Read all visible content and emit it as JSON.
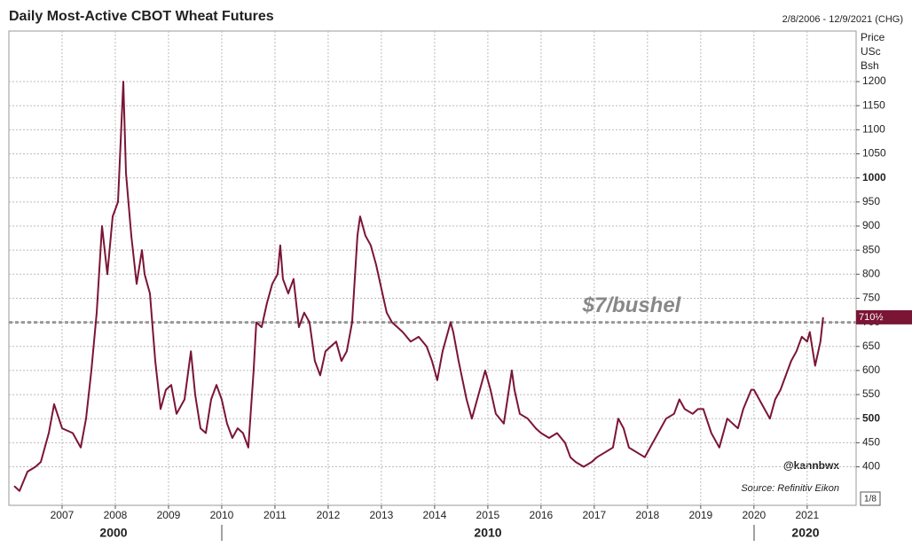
{
  "chart_data": {
    "type": "line",
    "title": "Daily Most-Active CBOT Wheat Futures",
    "date_range": "2/8/2006 - 12/9/2021 (CHG)",
    "y_axis_label": [
      "Price",
      "USc",
      "Bsh"
    ],
    "color": "#7b1535",
    "x": [
      2006.1,
      2006.2,
      2006.35,
      2006.5,
      2006.6,
      2006.75,
      2006.85,
      2007.0,
      2007.2,
      2007.35,
      2007.45,
      2007.55,
      2007.65,
      2007.75,
      2007.85,
      2007.95,
      2008.05,
      2008.15,
      2008.2,
      2008.3,
      2008.4,
      2008.5,
      2008.55,
      2008.65,
      2008.75,
      2008.85,
      2008.95,
      2009.05,
      2009.15,
      2009.3,
      2009.42,
      2009.5,
      2009.6,
      2009.7,
      2009.8,
      2009.9,
      2010.0,
      2010.1,
      2010.2,
      2010.3,
      2010.4,
      2010.5,
      2010.6,
      2010.65,
      2010.75,
      2010.85,
      2010.95,
      2011.05,
      2011.1,
      2011.15,
      2011.25,
      2011.35,
      2011.45,
      2011.55,
      2011.65,
      2011.75,
      2011.85,
      2011.95,
      2012.05,
      2012.15,
      2012.25,
      2012.35,
      2012.45,
      2012.55,
      2012.6,
      2012.7,
      2012.8,
      2012.9,
      2013.0,
      2013.1,
      2013.2,
      2013.3,
      2013.4,
      2013.55,
      2013.7,
      2013.85,
      2013.95,
      2014.05,
      2014.15,
      2014.3,
      2014.35,
      2014.45,
      2014.6,
      2014.7,
      2014.85,
      2014.95,
      2015.05,
      2015.15,
      2015.3,
      2015.45,
      2015.5,
      2015.6,
      2015.75,
      2015.9,
      2016.0,
      2016.15,
      2016.3,
      2016.45,
      2016.55,
      2016.65,
      2016.8,
      2016.95,
      2017.05,
      2017.2,
      2017.35,
      2017.45,
      2017.55,
      2017.65,
      2017.8,
      2017.95,
      2018.05,
      2018.2,
      2018.35,
      2018.5,
      2018.6,
      2018.7,
      2018.85,
      2018.95,
      2019.05,
      2019.2,
      2019.35,
      2019.5,
      2019.6,
      2019.7,
      2019.8,
      2019.95,
      2020.0,
      2020.1,
      2020.2,
      2020.3,
      2020.4,
      2020.5,
      2020.6,
      2020.7,
      2020.8,
      2020.9,
      2021.0,
      2021.05,
      2021.15,
      2021.25,
      2021.3
    ],
    "values": [
      360,
      350,
      390,
      400,
      410,
      470,
      530,
      480,
      470,
      440,
      500,
      600,
      720,
      900,
      800,
      920,
      950,
      1200,
      1010,
      880,
      780,
      850,
      800,
      760,
      620,
      520,
      560,
      570,
      510,
      540,
      640,
      550,
      480,
      470,
      540,
      570,
      540,
      490,
      460,
      480,
      470,
      440,
      600,
      700,
      690,
      740,
      780,
      800,
      860,
      790,
      760,
      790,
      690,
      720,
      700,
      620,
      590,
      640,
      650,
      660,
      620,
      640,
      700,
      880,
      920,
      880,
      860,
      820,
      770,
      720,
      700,
      690,
      680,
      660,
      670,
      650,
      620,
      580,
      640,
      700,
      680,
      620,
      540,
      500,
      560,
      600,
      560,
      510,
      490,
      600,
      560,
      510,
      500,
      480,
      470,
      460,
      470,
      450,
      420,
      410,
      400,
      410,
      420,
      430,
      440,
      500,
      480,
      440,
      430,
      420,
      440,
      470,
      500,
      510,
      540,
      520,
      510,
      520,
      520,
      470,
      440,
      500,
      490,
      480,
      520,
      560,
      560,
      540,
      520,
      500,
      540,
      560,
      590,
      620,
      640,
      670,
      660,
      680,
      610,
      660,
      710.5
    ],
    "xlim": [
      2006.0,
      2021.92
    ],
    "xticks": [
      2007,
      2008,
      2009,
      2010,
      2011,
      2012,
      2013,
      2014,
      2015,
      2016,
      2017,
      2018,
      2019,
      2020,
      2021
    ],
    "decade_labels": [
      "2000",
      "2010",
      "2020"
    ],
    "ylim": [
      320,
      1305
    ],
    "yticks": [
      400,
      450,
      500,
      550,
      600,
      650,
      700,
      750,
      800,
      850,
      900,
      950,
      1000,
      1050,
      1100,
      1150,
      1200
    ],
    "major_yticks": [
      500,
      1000
    ],
    "grid": true,
    "ref_line": {
      "value": 700,
      "label": "$7/bushel"
    },
    "last_label": {
      "value": 710.5,
      "label": "710½"
    },
    "handle": "@kannbwx",
    "source": "Source: Refinitiv Eikon",
    "tick_unit": "1/8"
  }
}
